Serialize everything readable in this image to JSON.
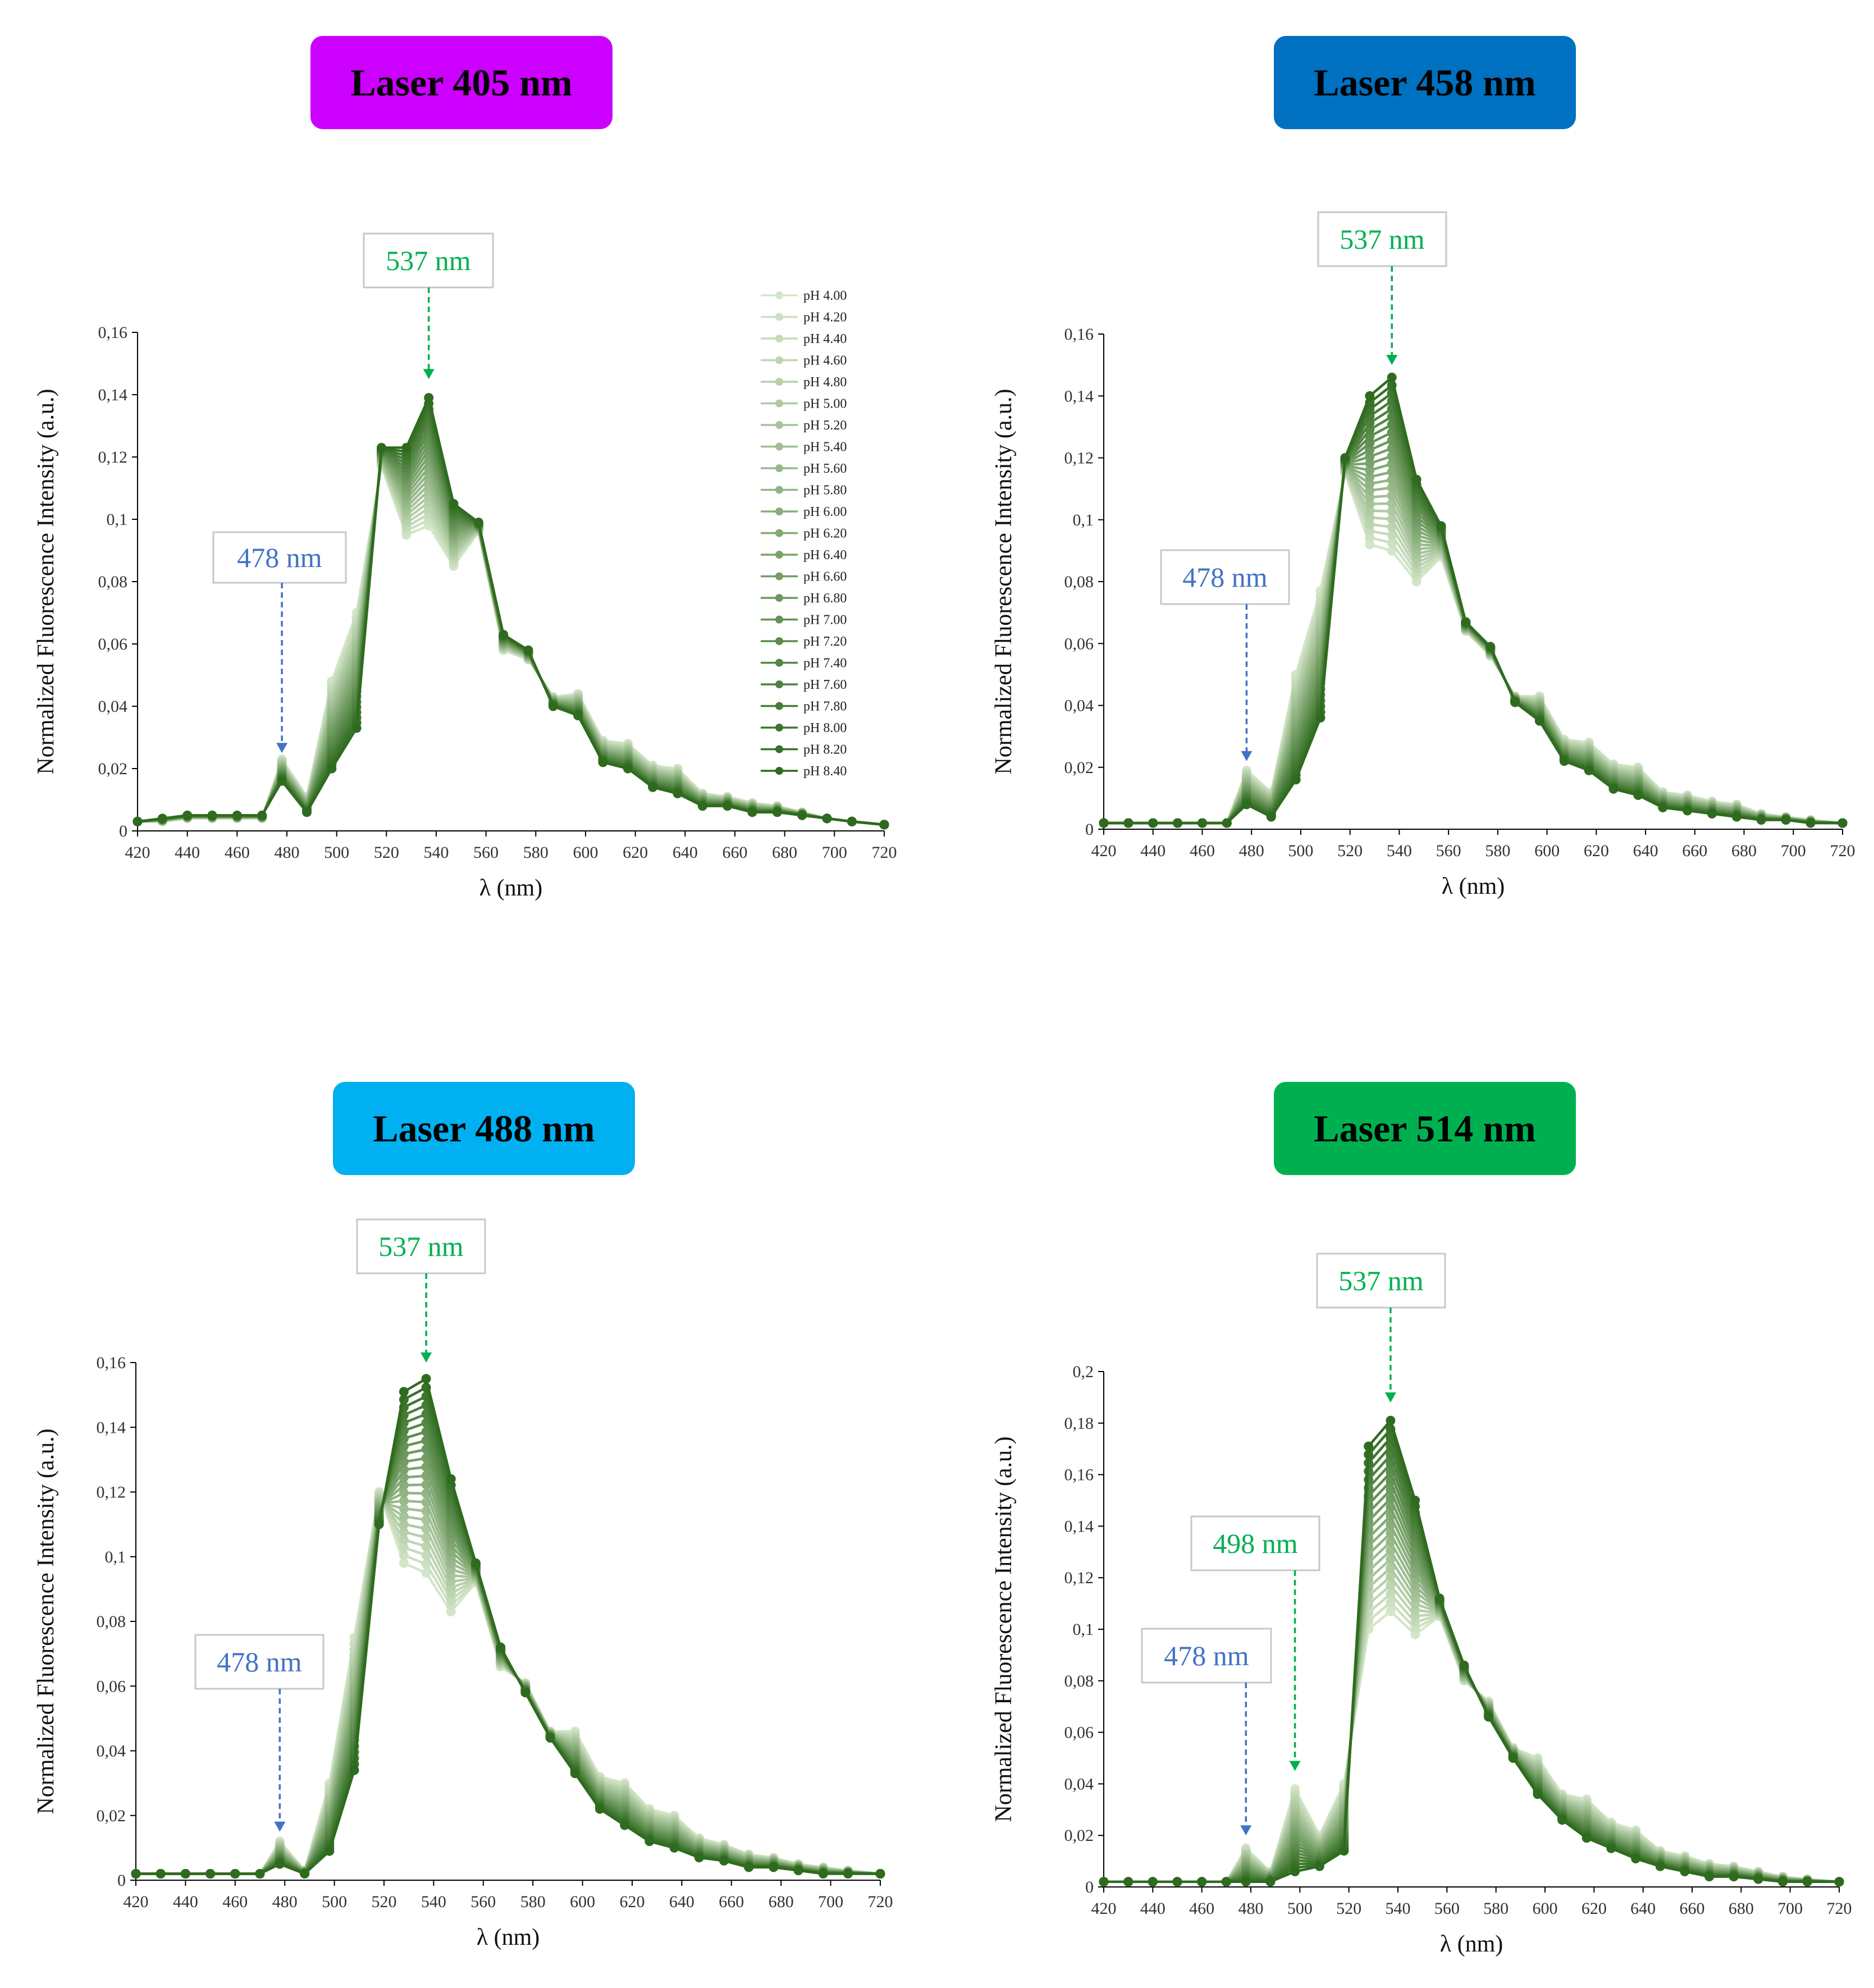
{
  "panels": [
    {
      "title": "Laser 405 nm",
      "color": "#cc00ff"
    },
    {
      "title": "Laser 458 nm",
      "color": "#0070c0"
    },
    {
      "title": "Laser 488 nm",
      "color": "#00b0f0"
    },
    {
      "title": "Laser 514 nm",
      "color": "#00b050"
    }
  ],
  "chart_data": [
    {
      "type": "line",
      "title": "Laser 405 nm",
      "xlabel": "λ (nm)",
      "ylabel": "Normalized Fluorescence Intensity (a.u.)",
      "xlim": [
        420,
        720
      ],
      "ylim": [
        0,
        0.16
      ],
      "xticks": [
        420,
        440,
        460,
        480,
        500,
        520,
        540,
        560,
        580,
        600,
        620,
        640,
        660,
        680,
        700,
        720
      ],
      "yticks": [
        "0",
        "0,02",
        "0,04",
        "0,06",
        "0,08",
        "0,1",
        "0,12",
        "0,14",
        "0,16"
      ],
      "x": [
        420,
        430,
        440,
        450,
        460,
        470,
        478,
        488,
        498,
        508,
        518,
        528,
        537,
        547,
        557,
        567,
        577,
        587,
        597,
        607,
        617,
        627,
        637,
        647,
        657,
        667,
        677,
        687,
        697,
        707,
        720
      ],
      "series_low": [
        0.003,
        0.003,
        0.004,
        0.004,
        0.004,
        0.004,
        0.023,
        0.011,
        0.048,
        0.07,
        0.117,
        0.095,
        0.098,
        0.085,
        0.096,
        0.058,
        0.055,
        0.043,
        0.044,
        0.029,
        0.028,
        0.021,
        0.02,
        0.012,
        0.011,
        0.009,
        0.008,
        0.006,
        0.004,
        0.003,
        0.002
      ],
      "series_high": [
        0.003,
        0.004,
        0.005,
        0.005,
        0.005,
        0.005,
        0.016,
        0.006,
        0.02,
        0.033,
        0.123,
        0.123,
        0.139,
        0.105,
        0.099,
        0.063,
        0.058,
        0.04,
        0.037,
        0.022,
        0.02,
        0.014,
        0.012,
        0.008,
        0.008,
        0.006,
        0.006,
        0.005,
        0.004,
        0.003,
        0.002
      ],
      "series": [
        "pH 4.00",
        "pH 4.20",
        "pH 4.40",
        "pH 4.60",
        "pH 4.80",
        "pH 5.00",
        "pH 5.20",
        "pH 5.40",
        "pH 5.60",
        "pH 5.80",
        "pH 6.00",
        "pH 6.20",
        "pH 6.40",
        "pH 6.60",
        "pH 6.80",
        "pH 7.00",
        "pH 7.20",
        "pH 7.40",
        "pH 7.60",
        "pH 7.80",
        "pH 8.00",
        "pH 8.20",
        "pH 8.40"
      ],
      "annotations": [
        {
          "text": "478 nm",
          "x": 478,
          "y": 0.025,
          "color": "#4472c4"
        },
        {
          "text": "537 nm",
          "x": 537,
          "y": 0.145,
          "color": "#00b050"
        }
      ]
    },
    {
      "type": "line",
      "title": "Laser 458 nm",
      "xlabel": "λ (nm)",
      "ylabel": "Normalized Fluorescence Intensity (a.u.)",
      "xlim": [
        420,
        720
      ],
      "ylim": [
        0,
        0.16
      ],
      "xticks": [
        420,
        440,
        460,
        480,
        500,
        520,
        540,
        560,
        580,
        600,
        620,
        640,
        660,
        680,
        700,
        720
      ],
      "yticks": [
        "0",
        "0,02",
        "0,04",
        "0,06",
        "0,08",
        "0,1",
        "0,12",
        "0,14",
        "0,16"
      ],
      "x": [
        420,
        430,
        440,
        450,
        460,
        470,
        478,
        488,
        498,
        508,
        518,
        528,
        537,
        547,
        557,
        567,
        577,
        587,
        597,
        607,
        617,
        627,
        637,
        647,
        657,
        667,
        677,
        687,
        697,
        707,
        720
      ],
      "series_low": [
        0.002,
        0.002,
        0.002,
        0.002,
        0.002,
        0.002,
        0.019,
        0.012,
        0.05,
        0.077,
        0.115,
        0.092,
        0.09,
        0.08,
        0.088,
        0.064,
        0.056,
        0.043,
        0.043,
        0.029,
        0.028,
        0.021,
        0.02,
        0.012,
        0.011,
        0.009,
        0.008,
        0.005,
        0.004,
        0.003,
        0.002
      ],
      "series_high": [
        0.002,
        0.002,
        0.002,
        0.002,
        0.002,
        0.002,
        0.008,
        0.004,
        0.016,
        0.036,
        0.12,
        0.14,
        0.146,
        0.113,
        0.098,
        0.067,
        0.059,
        0.041,
        0.035,
        0.022,
        0.019,
        0.013,
        0.011,
        0.007,
        0.006,
        0.005,
        0.004,
        0.003,
        0.003,
        0.002,
        0.002
      ],
      "series": [
        "pH 4.00",
        "pH 4.20",
        "pH 4.40",
        "pH 4.60",
        "pH 4.80",
        "pH 5.00",
        "pH 5.20",
        "pH 5.40",
        "pH 5.60",
        "pH 5.80",
        "pH 6.00",
        "pH 6.20",
        "pH 6.40",
        "pH 6.60",
        "pH 6.80",
        "pH 7.00",
        "pH 7.20",
        "pH 7.40",
        "pH 7.60",
        "pH 7.80",
        "pH 8.00",
        "pH 8.20",
        "pH 8.40"
      ],
      "annotations": [
        {
          "text": "478 nm",
          "x": 478,
          "y": 0.022,
          "color": "#4472c4"
        },
        {
          "text": "537 nm",
          "x": 537,
          "y": 0.15,
          "color": "#00b050"
        }
      ]
    },
    {
      "type": "line",
      "title": "Laser 488 nm",
      "xlabel": "λ (nm)",
      "ylabel": "Normalized Fluorescence Intensity (a.u.)",
      "xlim": [
        420,
        720
      ],
      "ylim": [
        0,
        0.16
      ],
      "xticks": [
        420,
        440,
        460,
        480,
        500,
        520,
        540,
        560,
        580,
        600,
        620,
        640,
        660,
        680,
        700,
        720
      ],
      "yticks": [
        "0",
        "0,02",
        "0,04",
        "0,06",
        "0,08",
        "0,1",
        "0,12",
        "0,14",
        "0,16"
      ],
      "x": [
        420,
        430,
        440,
        450,
        460,
        470,
        478,
        488,
        498,
        508,
        518,
        528,
        537,
        547,
        557,
        567,
        577,
        587,
        597,
        607,
        617,
        627,
        637,
        647,
        657,
        667,
        677,
        687,
        697,
        707,
        720
      ],
      "series_low": [
        0.002,
        0.002,
        0.002,
        0.002,
        0.002,
        0.002,
        0.012,
        0.003,
        0.03,
        0.075,
        0.12,
        0.098,
        0.095,
        0.083,
        0.092,
        0.066,
        0.061,
        0.046,
        0.046,
        0.032,
        0.03,
        0.022,
        0.02,
        0.013,
        0.011,
        0.008,
        0.007,
        0.005,
        0.004,
        0.003,
        0.002
      ],
      "series_high": [
        0.002,
        0.002,
        0.002,
        0.002,
        0.002,
        0.002,
        0.005,
        0.002,
        0.009,
        0.034,
        0.11,
        0.151,
        0.155,
        0.124,
        0.098,
        0.072,
        0.058,
        0.044,
        0.033,
        0.022,
        0.017,
        0.012,
        0.01,
        0.007,
        0.006,
        0.004,
        0.004,
        0.003,
        0.002,
        0.002,
        0.002
      ],
      "series": [
        "pH 4.00",
        "pH 4.20",
        "pH 4.40",
        "pH 4.60",
        "pH 4.80",
        "pH 5.00",
        "pH 5.20",
        "pH 5.40",
        "pH 5.60",
        "pH 5.80",
        "pH 6.00",
        "pH 6.20",
        "pH 6.40",
        "pH 6.60",
        "pH 6.80",
        "pH 7.00",
        "pH 7.20",
        "pH 7.40",
        "pH 7.60",
        "pH 7.80",
        "pH 8.00",
        "pH 8.20",
        "pH 8.40"
      ],
      "annotations": [
        {
          "text": "478 nm",
          "x": 478,
          "y": 0.015,
          "color": "#4472c4"
        },
        {
          "text": "537 nm",
          "x": 537,
          "y": 0.16,
          "color": "#00b050"
        }
      ]
    },
    {
      "type": "line",
      "title": "Laser 514 nm",
      "xlabel": "λ (nm)",
      "ylabel": "Normalized Fluorescence Intensity (a.u.)",
      "xlim": [
        420,
        720
      ],
      "ylim": [
        0,
        0.2
      ],
      "xticks": [
        420,
        440,
        460,
        480,
        500,
        520,
        540,
        560,
        580,
        600,
        620,
        640,
        660,
        680,
        700,
        720
      ],
      "yticks": [
        "0",
        "0,02",
        "0,04",
        "0,06",
        "0,08",
        "0,1",
        "0,12",
        "0,14",
        "0,16",
        "0,18",
        "0,2"
      ],
      "x": [
        420,
        430,
        440,
        450,
        460,
        470,
        478,
        488,
        498,
        508,
        518,
        528,
        537,
        547,
        557,
        567,
        577,
        587,
        597,
        607,
        617,
        627,
        637,
        647,
        657,
        667,
        677,
        687,
        697,
        707,
        720
      ],
      "series_low": [
        0.002,
        0.002,
        0.002,
        0.002,
        0.002,
        0.002,
        0.015,
        0.006,
        0.038,
        0.02,
        0.04,
        0.1,
        0.107,
        0.098,
        0.105,
        0.08,
        0.072,
        0.054,
        0.05,
        0.036,
        0.034,
        0.025,
        0.022,
        0.014,
        0.012,
        0.009,
        0.008,
        0.006,
        0.004,
        0.003,
        0.002
      ],
      "series_high": [
        0.002,
        0.002,
        0.002,
        0.002,
        0.002,
        0.002,
        0.002,
        0.002,
        0.006,
        0.008,
        0.014,
        0.171,
        0.181,
        0.15,
        0.112,
        0.086,
        0.066,
        0.05,
        0.036,
        0.026,
        0.019,
        0.015,
        0.011,
        0.008,
        0.006,
        0.004,
        0.004,
        0.003,
        0.002,
        0.002,
        0.002
      ],
      "series": [
        "pH 4.00",
        "pH 4.20",
        "pH 4.40",
        "pH 4.60",
        "pH 4.80",
        "pH 5.00",
        "pH 5.20",
        "pH 5.40",
        "pH 5.60",
        "pH 5.80",
        "pH 6.00",
        "pH 6.20",
        "pH 6.40",
        "pH 6.60",
        "pH 6.80",
        "pH 7.00",
        "pH 7.20",
        "pH 7.40",
        "pH 7.60",
        "pH 7.80",
        "pH 8.00",
        "pH 8.20",
        "pH 8.40"
      ],
      "annotations": [
        {
          "text": "478 nm",
          "x": 478,
          "y": 0.02,
          "color": "#4472c4"
        },
        {
          "text": "498 nm",
          "x": 498,
          "y": 0.045,
          "color": "#00b050"
        },
        {
          "text": "537 nm",
          "x": 537,
          "y": 0.188,
          "color": "#00b050"
        }
      ]
    }
  ],
  "colors": {
    "series_light": "#d4e6c9",
    "series_dark": "#2f6b1f",
    "axis": "#000000"
  }
}
